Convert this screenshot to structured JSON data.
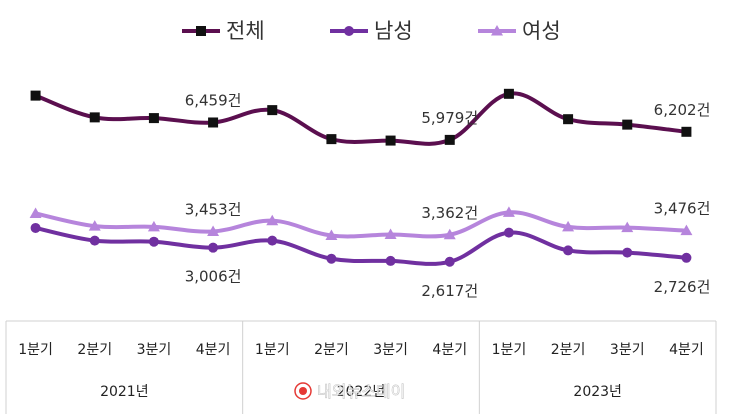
{
  "chart_data": {
    "type": "line",
    "title": "",
    "xlabel": "",
    "ylabel": "",
    "grid": false,
    "legend_position": "top",
    "categories": [
      "1분기",
      "2분기",
      "3분기",
      "4분기",
      "1분기",
      "2분기",
      "3분기",
      "4분기",
      "1분기",
      "2분기",
      "3분기",
      "4분기"
    ],
    "groups": [
      {
        "label": "2021년",
        "span": [
          0,
          3
        ]
      },
      {
        "label": "2022년",
        "span": [
          4,
          7
        ]
      },
      {
        "label": "2023년",
        "span": [
          8,
          11
        ]
      }
    ],
    "series": [
      {
        "name": "전체",
        "color": "#5b0f4f",
        "marker": "square",
        "values": [
          7200,
          6600,
          6580,
          6459,
          6800,
          6000,
          5960,
          5979,
          7250,
          6550,
          6400,
          6202
        ]
      },
      {
        "name": "여성",
        "color": "#b685dc",
        "marker": "triangle",
        "values": [
          3950,
          3600,
          3580,
          3453,
          3750,
          3340,
          3370,
          3362,
          3980,
          3580,
          3560,
          3476
        ]
      },
      {
        "name": "남성",
        "color": "#7030a0",
        "marker": "circle",
        "values": [
          3550,
          3200,
          3170,
          3006,
          3200,
          2700,
          2640,
          2617,
          3420,
          2930,
          2870,
          2726
        ]
      }
    ],
    "data_labels": [
      {
        "series": 0,
        "index": 3,
        "text": "6,459건",
        "position": "above"
      },
      {
        "series": 0,
        "index": 7,
        "text": "5,979건",
        "position": "above"
      },
      {
        "series": 0,
        "index": 11,
        "text": "6,202건",
        "position": "above"
      },
      {
        "series": 1,
        "index": 3,
        "text": "3,453건",
        "position": "above"
      },
      {
        "series": 1,
        "index": 7,
        "text": "3,362건",
        "position": "above"
      },
      {
        "series": 1,
        "index": 11,
        "text": "3,476건",
        "position": "above"
      },
      {
        "series": 2,
        "index": 3,
        "text": "3,006건",
        "position": "below"
      },
      {
        "series": 2,
        "index": 7,
        "text": "2,617건",
        "position": "below"
      },
      {
        "series": 2,
        "index": 11,
        "text": "2,726건",
        "position": "below"
      }
    ],
    "legend_order": [
      0,
      2,
      1
    ]
  },
  "watermark": {
    "text": "내외뉴스데이",
    "icon": "red-dot-icon",
    "color": "#e53935"
  }
}
